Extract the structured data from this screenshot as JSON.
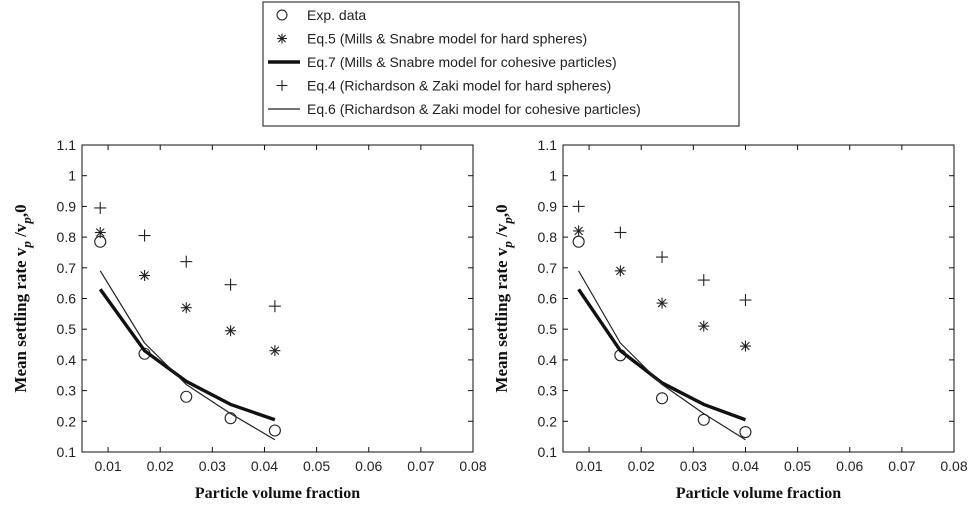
{
  "legend": {
    "entries": [
      {
        "label": "Exp. data",
        "marker": "circle"
      },
      {
        "label": "Eq.5 (Mills & Snabre model for hard spheres)",
        "marker": "star"
      },
      {
        "label": "Eq.7 (Mills & Snabre model for cohesive particles)",
        "marker": "thick-line"
      },
      {
        "label": "Eq.4 (Richardson & Zaki model for hard spheres)",
        "marker": "plus"
      },
      {
        "label": "Eq.6 (Richardson & Zaki model for cohesive particles)",
        "marker": "thin-line"
      }
    ]
  },
  "chart_data": [
    {
      "type": "scatter",
      "xlabel": "Particle volume fraction",
      "ylabel_main": "Mean settling rate v",
      "ylabel_sub1": "p",
      "ylabel_mid": " /v",
      "ylabel_sub2": "p",
      "ylabel_end": ",0",
      "xlim": [
        0.005,
        0.08
      ],
      "ylim": [
        0.1,
        1.1
      ],
      "xticks": [
        "0.01",
        "0.02",
        "0.03",
        "0.04",
        "0.05",
        "0.06",
        "0.07",
        "0.08"
      ],
      "yticks": [
        "0.1",
        "0.2",
        "0.3",
        "0.4",
        "0.5",
        "0.6",
        "0.7",
        "0.8",
        "0.9",
        "1",
        "1.1"
      ],
      "series": [
        {
          "name": "Exp. data",
          "style": "circle",
          "x": [
            0.0085,
            0.017,
            0.025,
            0.0335,
            0.042
          ],
          "y": [
            0.785,
            0.42,
            0.28,
            0.21,
            0.17
          ]
        },
        {
          "name": "Eq.5 (Mills & Snabre model for hard spheres)",
          "style": "star",
          "x": [
            0.0085,
            0.017,
            0.025,
            0.0335,
            0.042
          ],
          "y": [
            0.815,
            0.675,
            0.57,
            0.495,
            0.43
          ]
        },
        {
          "name": "Eq.7 (Mills & Snabre model for cohesive particles)",
          "style": "thick-line",
          "x": [
            0.0085,
            0.017,
            0.025,
            0.0335,
            0.042
          ],
          "y": [
            0.63,
            0.43,
            0.33,
            0.255,
            0.205
          ]
        },
        {
          "name": "Eq.4 (Richardson & Zaki model for hard spheres)",
          "style": "plus",
          "x": [
            0.0085,
            0.017,
            0.025,
            0.0335,
            0.042
          ],
          "y": [
            0.895,
            0.805,
            0.72,
            0.645,
            0.575
          ]
        },
        {
          "name": "Eq.6 (Richardson & Zaki model for cohesive particles)",
          "style": "thin-line",
          "x": [
            0.0085,
            0.017,
            0.025,
            0.0335,
            0.042
          ],
          "y": [
            0.69,
            0.455,
            0.32,
            0.225,
            0.14
          ]
        }
      ]
    },
    {
      "type": "scatter",
      "xlabel": "Particle volume fraction",
      "ylabel_main": "Mean settling rate v",
      "ylabel_sub1": "p",
      "ylabel_mid": " /v",
      "ylabel_sub2": "p",
      "ylabel_end": ",0",
      "xlim": [
        0.005,
        0.08
      ],
      "ylim": [
        0.1,
        1.1
      ],
      "xticks": [
        "0.01",
        "0.02",
        "0.03",
        "0.04",
        "0.05",
        "0.06",
        "0.07",
        "0.08"
      ],
      "yticks": [
        "0.1",
        "0.2",
        "0.3",
        "0.4",
        "0.5",
        "0.6",
        "0.7",
        "0.8",
        "0.9",
        "1",
        "1.1"
      ],
      "series": [
        {
          "name": "Exp. data",
          "style": "circle",
          "x": [
            0.008,
            0.016,
            0.024,
            0.032,
            0.04
          ],
          "y": [
            0.785,
            0.415,
            0.275,
            0.205,
            0.165
          ]
        },
        {
          "name": "Eq.5 (Mills & Snabre model for hard spheres)",
          "style": "star",
          "x": [
            0.008,
            0.016,
            0.024,
            0.032,
            0.04
          ],
          "y": [
            0.82,
            0.69,
            0.585,
            0.51,
            0.445
          ]
        },
        {
          "name": "Eq.7 (Mills & Snabre model for cohesive particles)",
          "style": "thick-line",
          "x": [
            0.008,
            0.016,
            0.024,
            0.032,
            0.04
          ],
          "y": [
            0.63,
            0.43,
            0.325,
            0.255,
            0.205
          ]
        },
        {
          "name": "Eq.4 (Richardson & Zaki model for hard spheres)",
          "style": "plus",
          "x": [
            0.008,
            0.016,
            0.024,
            0.032,
            0.04
          ],
          "y": [
            0.9,
            0.815,
            0.735,
            0.66,
            0.595
          ]
        },
        {
          "name": "Eq.6 (Richardson & Zaki model for cohesive particles)",
          "style": "thin-line",
          "x": [
            0.008,
            0.016,
            0.024,
            0.032,
            0.04
          ],
          "y": [
            0.69,
            0.455,
            0.32,
            0.225,
            0.14
          ]
        }
      ]
    }
  ]
}
